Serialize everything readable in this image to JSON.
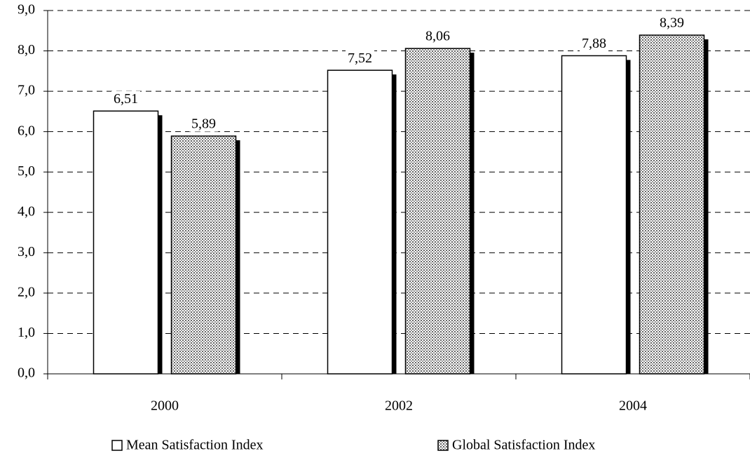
{
  "chart_data": {
    "type": "bar",
    "categories": [
      "2000",
      "2002",
      "2004"
    ],
    "series": [
      {
        "name": "Mean Satisfaction Index",
        "color": "#ffffff",
        "values": [
          6.51,
          7.52,
          7.88
        ],
        "value_labels": [
          "6,51",
          "7,52",
          "7,88"
        ]
      },
      {
        "name": "Global Satisfaction Index",
        "color": "#ffffff",
        "pattern": "dots",
        "values": [
          5.89,
          8.06,
          8.39
        ],
        "value_labels": [
          "5,89",
          "8,06",
          "8,39"
        ]
      }
    ],
    "ylim": [
      0,
      9
    ],
    "yticks": [
      {
        "value": 0,
        "label": "0,0"
      },
      {
        "value": 1,
        "label": "1,0"
      },
      {
        "value": 2,
        "label": "2,0"
      },
      {
        "value": 3,
        "label": "3,0"
      },
      {
        "value": 4,
        "label": "4,0"
      },
      {
        "value": 5,
        "label": "5,0"
      },
      {
        "value": 6,
        "label": "6,0"
      },
      {
        "value": 7,
        "label": "7,0"
      },
      {
        "value": 8,
        "label": "8,0"
      },
      {
        "value": 9,
        "label": "9,0"
      }
    ],
    "grid": true,
    "legend": "bottom"
  }
}
